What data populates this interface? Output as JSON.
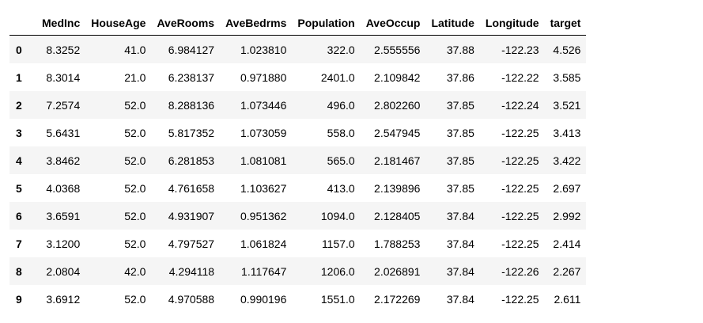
{
  "dataframe": {
    "columns": [
      "MedInc",
      "HouseAge",
      "AveRooms",
      "AveBedrms",
      "Population",
      "AveOccup",
      "Latitude",
      "Longitude",
      "target"
    ],
    "index": [
      "0",
      "1",
      "2",
      "3",
      "4",
      "5",
      "6",
      "7",
      "8",
      "9"
    ],
    "rows": [
      [
        "8.3252",
        "41.0",
        "6.984127",
        "1.023810",
        "322.0",
        "2.555556",
        "37.88",
        "-122.23",
        "4.526"
      ],
      [
        "8.3014",
        "21.0",
        "6.238137",
        "0.971880",
        "2401.0",
        "2.109842",
        "37.86",
        "-122.22",
        "3.585"
      ],
      [
        "7.2574",
        "52.0",
        "8.288136",
        "1.073446",
        "496.0",
        "2.802260",
        "37.85",
        "-122.24",
        "3.521"
      ],
      [
        "5.6431",
        "52.0",
        "5.817352",
        "1.073059",
        "558.0",
        "2.547945",
        "37.85",
        "-122.25",
        "3.413"
      ],
      [
        "3.8462",
        "52.0",
        "6.281853",
        "1.081081",
        "565.0",
        "2.181467",
        "37.85",
        "-122.25",
        "3.422"
      ],
      [
        "4.0368",
        "52.0",
        "4.761658",
        "1.103627",
        "413.0",
        "2.139896",
        "37.85",
        "-122.25",
        "2.697"
      ],
      [
        "3.6591",
        "52.0",
        "4.931907",
        "0.951362",
        "1094.0",
        "2.128405",
        "37.84",
        "-122.25",
        "2.992"
      ],
      [
        "3.1200",
        "52.0",
        "4.797527",
        "1.061824",
        "1157.0",
        "1.788253",
        "37.84",
        "-122.25",
        "2.414"
      ],
      [
        "2.0804",
        "42.0",
        "4.294118",
        "1.117647",
        "1206.0",
        "2.026891",
        "37.84",
        "-122.26",
        "2.267"
      ],
      [
        "3.6912",
        "52.0",
        "4.970588",
        "0.990196",
        "1551.0",
        "2.172269",
        "37.84",
        "-122.25",
        "2.611"
      ]
    ]
  }
}
